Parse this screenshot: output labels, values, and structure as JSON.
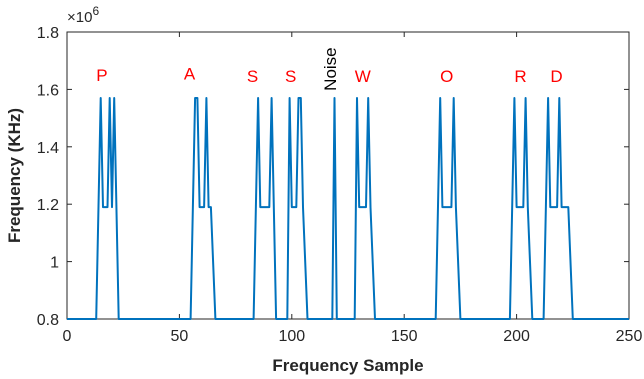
{
  "chart_data": {
    "type": "line",
    "xlabel": "Frequency Sample",
    "ylabel": "Frequency (KHz)",
    "y_exponent_prefix": "×10",
    "y_exponent_power": "6",
    "xlim": [
      0,
      250
    ],
    "ylim": [
      800000,
      1800000
    ],
    "xticks": [
      0,
      50,
      100,
      150,
      200,
      250
    ],
    "yticks": [
      800000,
      1000000,
      1200000,
      1400000,
      1600000,
      1800000
    ],
    "xtick_labels": [
      "0",
      "50",
      "100",
      "150",
      "200",
      "250"
    ],
    "ytick_labels": [
      "0.8",
      "1",
      "1.2",
      "1.4",
      "1.6",
      "1.8"
    ],
    "grid": false,
    "series": [
      {
        "color": "#0072BD",
        "x": [
          0,
          13,
          15,
          16,
          18,
          19,
          20,
          21,
          23,
          55,
          57,
          58,
          59,
          60,
          61,
          62,
          63,
          64,
          66,
          83,
          85,
          86,
          88,
          89,
          90,
          91,
          93,
          98,
          99,
          100,
          102,
          103,
          104,
          105,
          107,
          118,
          119,
          120,
          128,
          129,
          130,
          132,
          133,
          134,
          135,
          137,
          164,
          166,
          167,
          170,
          171,
          172,
          173,
          175,
          197,
          199,
          200,
          202,
          203,
          204,
          205,
          207,
          212,
          214,
          215,
          217,
          218,
          219,
          220,
          223,
          225,
          250
        ],
        "y": [
          800000,
          800000,
          1570000,
          1190000,
          1190000,
          1570000,
          1190000,
          1570000,
          800000,
          800000,
          1570000,
          1570000,
          1190000,
          1190000,
          1190000,
          1570000,
          1190000,
          1190000,
          800000,
          800000,
          1570000,
          1190000,
          1190000,
          1190000,
          1190000,
          1570000,
          800000,
          800000,
          1570000,
          1190000,
          1190000,
          1570000,
          1570000,
          1190000,
          800000,
          800000,
          1570000,
          800000,
          800000,
          1570000,
          1190000,
          1190000,
          1190000,
          1570000,
          1190000,
          800000,
          800000,
          1570000,
          1190000,
          1190000,
          1190000,
          1570000,
          1190000,
          800000,
          800000,
          1570000,
          1190000,
          1190000,
          1190000,
          1570000,
          1190000,
          800000,
          800000,
          1570000,
          1190000,
          1190000,
          1190000,
          1570000,
          1190000,
          1190000,
          800000,
          800000
        ]
      }
    ],
    "annotations": [
      {
        "text": "P",
        "x": 13,
        "y": 1630000,
        "color": "#ff0000",
        "rotate": false
      },
      {
        "text": "A",
        "x": 52,
        "y": 1635000,
        "color": "#ff0000",
        "rotate": false
      },
      {
        "text": "S",
        "x": 80,
        "y": 1625000,
        "color": "#ff0000",
        "rotate": false
      },
      {
        "text": "S",
        "x": 97,
        "y": 1625000,
        "color": "#ff0000",
        "rotate": false
      },
      {
        "text": "Noise",
        "x": 117,
        "y": 1595000,
        "color": "#000000",
        "rotate": true
      },
      {
        "text": "W",
        "x": 128,
        "y": 1625000,
        "color": "#ff0000",
        "rotate": false
      },
      {
        "text": "O",
        "x": 166,
        "y": 1625000,
        "color": "#ff0000",
        "rotate": false
      },
      {
        "text": "R",
        "x": 199,
        "y": 1625000,
        "color": "#ff0000",
        "rotate": false
      },
      {
        "text": "D",
        "x": 215,
        "y": 1625000,
        "color": "#ff0000",
        "rotate": false
      }
    ]
  }
}
